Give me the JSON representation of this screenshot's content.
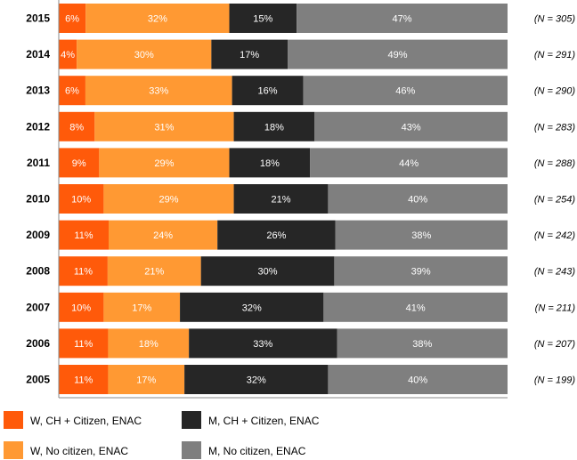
{
  "chart_data": {
    "type": "bar",
    "orientation": "horizontal-stacked-100",
    "title": "",
    "xlabel": "",
    "ylabel": "",
    "grid": false,
    "legend_position": "bottom-left",
    "categories": [
      "2015",
      "2014",
      "2013",
      "2012",
      "2011",
      "2010",
      "2009",
      "2008",
      "2007",
      "2006",
      "2005"
    ],
    "n_labels": [
      "(N = 305)",
      "(N = 291)",
      "(N = 290)",
      "(N = 283)",
      "(N = 288)",
      "(N = 254)",
      "(N = 242)",
      "(N = 243)",
      "(N = 211)",
      "(N = 207)",
      "(N = 199)"
    ],
    "series": [
      {
        "name": "W, CH + Citizen, ENAC",
        "color": "#ff5a0a",
        "values": [
          6,
          4,
          6,
          8,
          9,
          10,
          11,
          11,
          10,
          11,
          11
        ]
      },
      {
        "name": "W, No citizen, ENAC",
        "color": "#ff9933",
        "values": [
          32,
          30,
          33,
          31,
          29,
          29,
          24,
          21,
          17,
          18,
          17
        ]
      },
      {
        "name": "M, CH + Citizen, ENAC",
        "color": "#262626",
        "values": [
          15,
          17,
          16,
          18,
          18,
          21,
          26,
          30,
          32,
          33,
          32
        ]
      },
      {
        "name": "M, No citizen, ENAC",
        "color": "#7f7f7f",
        "values": [
          47,
          49,
          46,
          43,
          44,
          40,
          38,
          39,
          41,
          38,
          40
        ]
      }
    ]
  }
}
